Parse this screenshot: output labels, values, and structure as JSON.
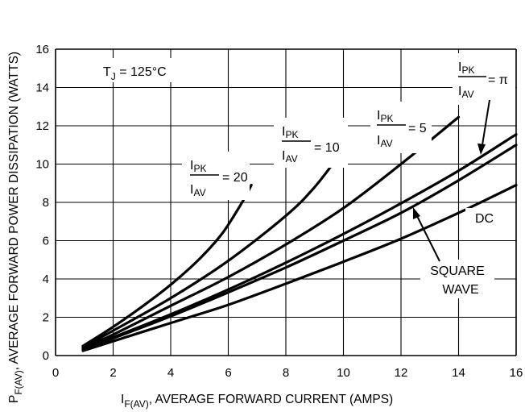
{
  "chart_data": {
    "type": "line",
    "xlabel": {
      "main": "I",
      "sub": "F(AV)",
      "rest": ", AVERAGE FORWARD CURRENT (AMPS)"
    },
    "ylabel": {
      "main": "P",
      "sub": "F(AV)",
      "rest": ", AVERAGE FORWARD POWER DISSIPATION (WATTS)"
    },
    "xlim": [
      0,
      16
    ],
    "ylim": [
      0,
      16
    ],
    "x_ticks": [
      "0",
      "2",
      "4",
      "6",
      "8",
      "10",
      "12",
      "14",
      "16"
    ],
    "y_ticks": [
      "0",
      "2",
      "4",
      "6",
      "8",
      "10",
      "12",
      "14",
      "16"
    ],
    "grid": true,
    "condition": {
      "main": "T",
      "sub": "J",
      "rest": " = 125°C"
    },
    "series": [
      {
        "name": "IPK/IAV = 20",
        "x": [
          0.95,
          2,
          3,
          4,
          5,
          5.8,
          6.5,
          6.8
        ],
        "y": [
          0.5,
          1.5,
          2.55,
          3.7,
          5.05,
          6.4,
          8.05,
          8.9
        ]
      },
      {
        "name": "IPK/IAV = 10",
        "x": [
          0.95,
          2,
          4,
          6,
          8,
          9,
          9.9
        ],
        "y": [
          0.45,
          1.3,
          3.0,
          4.95,
          7.3,
          8.8,
          10.55
        ]
      },
      {
        "name": "IPK/IAV = 5",
        "x": [
          0.95,
          2,
          4,
          6,
          8,
          10,
          12,
          14
        ],
        "y": [
          0.4,
          1.1,
          2.6,
          4.1,
          5.8,
          7.7,
          10.0,
          12.45
        ]
      },
      {
        "name": "IPK/IAV = π",
        "x": [
          0.95,
          2,
          4,
          6,
          8,
          10,
          12,
          14,
          16
        ],
        "y": [
          0.35,
          0.95,
          2.15,
          3.45,
          4.85,
          6.35,
          7.95,
          9.65,
          11.55
        ]
      },
      {
        "name": "SQUARE WAVE",
        "x": [
          0.95,
          2,
          4,
          6,
          8,
          10,
          12,
          14,
          16
        ],
        "y": [
          0.3,
          0.9,
          2.05,
          3.3,
          4.6,
          6.0,
          7.45,
          9.15,
          11.0
        ]
      },
      {
        "name": "DC",
        "x": [
          0.95,
          2,
          4,
          6,
          8,
          10,
          12,
          14,
          16
        ],
        "y": [
          0.25,
          0.75,
          1.7,
          2.65,
          3.75,
          4.9,
          6.1,
          7.45,
          8.9
        ]
      }
    ],
    "annotations": {
      "r20": {
        "num": "PK",
        "den": "AV",
        "eq": "= 20"
      },
      "r10": {
        "num": "PK",
        "den": "AV",
        "eq": "= 10"
      },
      "r5": {
        "num": "PK",
        "den": "AV",
        "eq": "= 5"
      },
      "rpi": {
        "num": "PK",
        "den": "AV",
        "eq": "= π"
      },
      "square": [
        "SQUARE",
        "WAVE"
      ],
      "dc": "DC",
      "letter": "I"
    }
  }
}
